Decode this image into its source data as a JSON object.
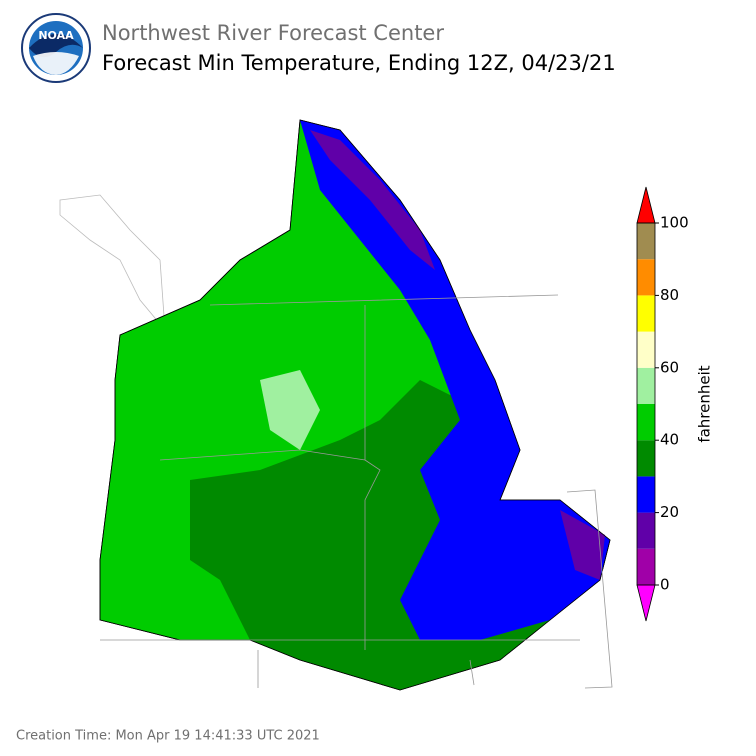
{
  "header": {
    "title": "Northwest River Forecast Center",
    "subtitle": "Forecast Min Temperature, Ending 12Z, 04/23/21",
    "logo_text": "NOAA"
  },
  "colorbar": {
    "label": "fahrenheit",
    "range": [
      0,
      100
    ],
    "ticks": [
      0,
      20,
      40,
      60,
      80,
      100
    ],
    "colors": [
      "#a000a8",
      "#6000a8",
      "#0000ff",
      "#008a00",
      "#00cc00",
      "#a0f0a0",
      "#ffffc8",
      "#ffff00",
      "#ff8c00",
      "#a08c50"
    ],
    "under_color": "#ff00ff",
    "over_color": "#ff0000"
  },
  "footer": {
    "creation_time": "Creation Time: Mon Apr 19 14:41:33 UTC 2021"
  }
}
